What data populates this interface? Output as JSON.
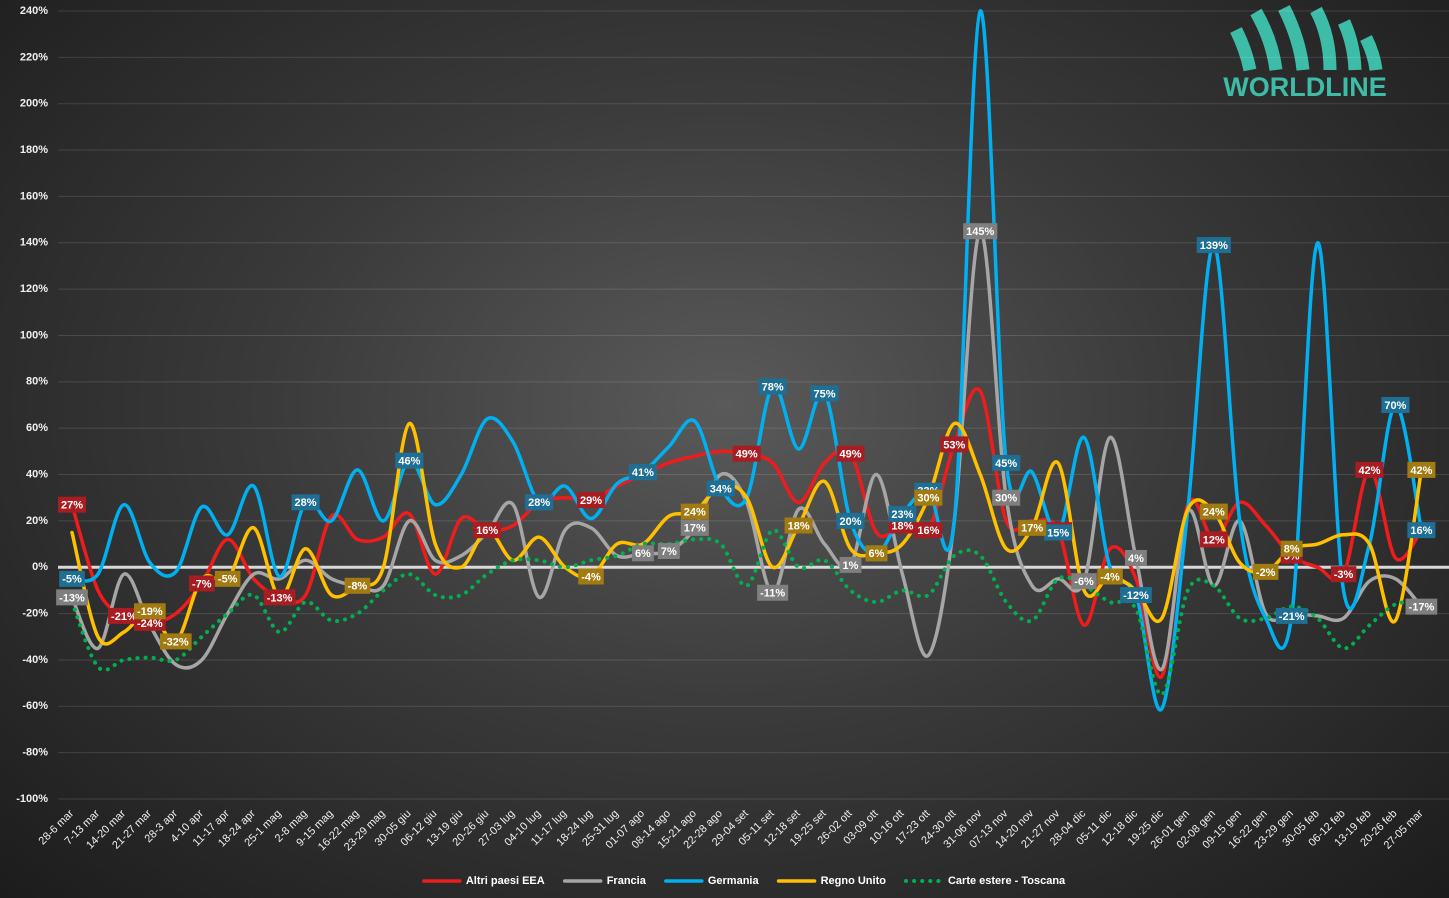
{
  "chart_data": {
    "type": "line",
    "logo": "WORLDLINE",
    "categories": [
      "28-6 mar",
      "7-13 mar",
      "14-20 mar",
      "21-27 mar",
      "28-3 apr",
      "4-10 apr",
      "11-17 apr",
      "18-24 apr",
      "25-1 mag",
      "2-8 mag",
      "9-15 mag",
      "16-22 mag",
      "23-29 mag",
      "30-05 giu",
      "06-12 giu",
      "13-19 giu",
      "20-26 giu",
      "27-03 lug",
      "04-10 lug",
      "11-17 lug",
      "18-24 lug",
      "25-31 lug",
      "01-07 ago",
      "08-14 ago",
      "15-21 ago",
      "22-28 ago",
      "29-04 set",
      "05-11 set",
      "12-18 set",
      "19-25 set",
      "26-02 ott",
      "03-09 ott",
      "10-16 ott",
      "17-23 ott",
      "24-30 ott",
      "31-06 nov",
      "07-13 nov",
      "14-20 nov",
      "21-27 nov",
      "28-04 dic",
      "05-11 dic",
      "12-18 dic",
      "19-25 dic",
      "26-01 gen",
      "02-08 gen",
      "09-15 gen",
      "16-22 gen",
      "23-29 gen",
      "30-05 feb",
      "06-12 feb",
      "13-19 feb",
      "20-26 feb",
      "27-05 mar"
    ],
    "ylim": [
      -100,
      240
    ],
    "yticks": [
      {
        "value": -100,
        "label": "-100%"
      },
      {
        "value": -80,
        "label": "-80%"
      },
      {
        "value": -60,
        "label": "-60%"
      },
      {
        "value": -40,
        "label": "-40%"
      },
      {
        "value": -20,
        "label": "-20%"
      },
      {
        "value": 0,
        "label": "0%"
      },
      {
        "value": 20,
        "label": "20%"
      },
      {
        "value": 40,
        "label": "40%"
      },
      {
        "value": 60,
        "label": "60%"
      },
      {
        "value": 80,
        "label": "80%"
      },
      {
        "value": 100,
        "label": "100%"
      },
      {
        "value": 120,
        "label": "120%"
      },
      {
        "value": 140,
        "label": "140%"
      },
      {
        "value": 160,
        "label": "160%"
      },
      {
        "value": 180,
        "label": "180%"
      },
      {
        "value": 200,
        "label": "200%"
      },
      {
        "value": 220,
        "label": "220%"
      },
      {
        "value": 240,
        "label": "240%"
      }
    ],
    "grid": true,
    "legend": "bottom",
    "series": [
      {
        "name": "Altri paesi EEA",
        "color": "#ee1c1c",
        "label_color": "#a81d22",
        "style": "solid",
        "values": [
          27,
          -10,
          -21,
          -24,
          -20,
          -7,
          12,
          -5,
          -13,
          -12,
          22,
          12,
          13,
          23,
          -3,
          21,
          16,
          18,
          28,
          30,
          29,
          35,
          40,
          45,
          48,
          50,
          49,
          45,
          28,
          45,
          49,
          15,
          18,
          16,
          53,
          76,
          20,
          20,
          16,
          -25,
          8,
          -5,
          -47,
          27,
          12,
          28,
          18,
          5,
          0,
          -3,
          42,
          4,
          16
        ],
        "value_labels": [
          "27%",
          null,
          "-21%",
          "-24%",
          null,
          "-7%",
          null,
          null,
          "-13%",
          null,
          null,
          null,
          null,
          null,
          null,
          null,
          "16%",
          null,
          null,
          null,
          "29%",
          null,
          null,
          null,
          null,
          null,
          "49%",
          null,
          null,
          null,
          "49%",
          null,
          "18%",
          "16%",
          "53%",
          null,
          null,
          null,
          "16%",
          null,
          null,
          null,
          null,
          null,
          "12%",
          null,
          null,
          "5%",
          null,
          "-3%",
          "42%",
          null,
          null
        ]
      },
      {
        "name": "Francia",
        "color": "#a6a6a6",
        "label_color": "#7f7f7f",
        "style": "solid",
        "values": [
          -13,
          -35,
          -3,
          -25,
          -42,
          -40,
          -20,
          -3,
          -5,
          3,
          -5,
          -8,
          -8,
          20,
          3,
          5,
          15,
          27,
          -13,
          16,
          17,
          5,
          6,
          7,
          17,
          40,
          28,
          -11,
          25,
          10,
          1,
          40,
          -3,
          -38,
          20,
          145,
          30,
          -8,
          -5,
          -6,
          56,
          4,
          -44,
          24,
          -8,
          20,
          -20,
          -20,
          -21,
          -22,
          -6,
          -5,
          -17
        ],
        "value_labels": [
          "-13%",
          null,
          null,
          null,
          null,
          null,
          null,
          null,
          null,
          null,
          null,
          null,
          null,
          null,
          null,
          null,
          null,
          null,
          null,
          null,
          null,
          null,
          "6%",
          "7%",
          "17%",
          null,
          null,
          "-11%",
          null,
          null,
          "1%",
          null,
          null,
          null,
          null,
          "145%",
          "30%",
          null,
          null,
          "-6%",
          null,
          "4%",
          null,
          null,
          null,
          null,
          null,
          null,
          null,
          null,
          null,
          null,
          "-17%"
        ]
      },
      {
        "name": "Germania",
        "color": "#00b0f0",
        "label_color": "#1f6f94",
        "style": "solid",
        "values": [
          -5,
          -3,
          27,
          2,
          -2,
          26,
          14,
          35,
          -4,
          28,
          20,
          42,
          20,
          46,
          27,
          40,
          64,
          54,
          28,
          35,
          21,
          36,
          41,
          52,
          63,
          34,
          30,
          78,
          51,
          75,
          20,
          6,
          23,
          33,
          20,
          240,
          45,
          41,
          15,
          56,
          0,
          -12,
          -61,
          25,
          139,
          20,
          -22,
          -21,
          140,
          -10,
          10,
          70,
          16
        ],
        "value_labels": [
          "-5%",
          null,
          null,
          null,
          null,
          null,
          null,
          null,
          null,
          "28%",
          null,
          null,
          null,
          "46%",
          null,
          null,
          null,
          null,
          "28%",
          null,
          null,
          null,
          "41%",
          null,
          null,
          "34%",
          null,
          "78%",
          null,
          "75%",
          "20%",
          "6%",
          "23%",
          "33%",
          null,
          null,
          "45%",
          null,
          "15%",
          null,
          null,
          "-12%",
          null,
          null,
          "139%",
          null,
          null,
          "-21%",
          null,
          null,
          null,
          "70%",
          "16%"
        ]
      },
      {
        "name": "Regno Unito",
        "color": "#ffc000",
        "label_color": "#a27a12",
        "style": "solid",
        "values": [
          15,
          -30,
          -28,
          -19,
          -32,
          -5,
          -5,
          17,
          -13,
          8,
          -12,
          -8,
          0,
          62,
          10,
          0,
          16,
          3,
          13,
          0,
          -4,
          10,
          10,
          22,
          24,
          35,
          30,
          0,
          18,
          37,
          8,
          6,
          10,
          30,
          62,
          40,
          8,
          17,
          45,
          -10,
          -4,
          -10,
          -22,
          25,
          24,
          2,
          -2,
          8,
          10,
          14,
          10,
          -23,
          42
        ],
        "value_labels": [
          null,
          null,
          null,
          "-19%",
          "-32%",
          null,
          "-5%",
          null,
          null,
          null,
          null,
          "-8%",
          null,
          null,
          null,
          null,
          null,
          null,
          null,
          null,
          "-4%",
          null,
          null,
          null,
          "24%",
          null,
          null,
          null,
          "18%",
          null,
          null,
          "6%",
          null,
          "30%",
          null,
          null,
          null,
          "17%",
          null,
          null,
          "-4%",
          null,
          null,
          null,
          "24%",
          null,
          "-2%",
          "8%",
          null,
          null,
          null,
          null,
          "42%"
        ]
      },
      {
        "name": "Carte estere - Toscana",
        "color": "#00b050",
        "style": "dotted",
        "values": [
          -15,
          -43,
          -40,
          -39,
          -40,
          -30,
          -20,
          -12,
          -28,
          -15,
          -23,
          -20,
          -10,
          -3,
          -12,
          -12,
          -3,
          3,
          3,
          0,
          3,
          5,
          10,
          10,
          12,
          10,
          -8,
          16,
          0,
          3,
          -10,
          -15,
          -10,
          -12,
          5,
          5,
          -15,
          -23,
          -5,
          -8,
          -15,
          -18,
          -55,
          -10,
          -8,
          -22,
          -22,
          -17,
          -22,
          -35,
          -25,
          -16,
          -15
        ]
      }
    ]
  }
}
